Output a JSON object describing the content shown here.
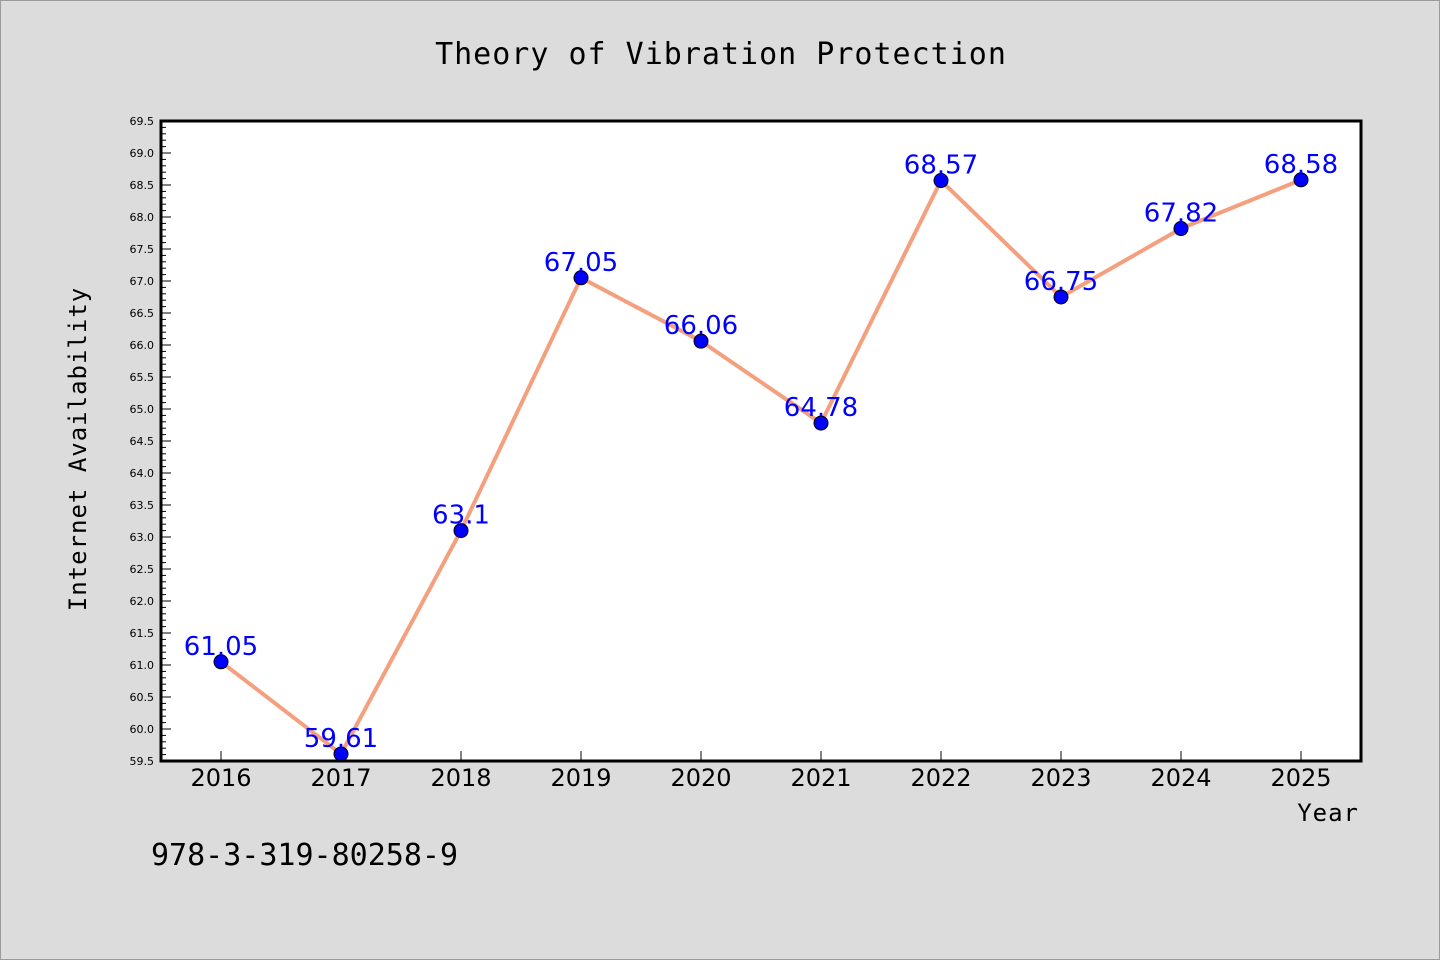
{
  "chart_data": {
    "type": "line",
    "title": "Theory of Vibration Protection",
    "xlabel": "Year",
    "ylabel": "Internet Availability",
    "x": [
      "2016",
      "2017",
      "2018",
      "2019",
      "2020",
      "2021",
      "2022",
      "2023",
      "2024",
      "2025"
    ],
    "series": [
      {
        "values": [
          61.05,
          59.61,
          63.1,
          67.05,
          66.06,
          64.78,
          68.57,
          66.75,
          67.82,
          68.58
        ],
        "labels": [
          "61.05",
          "59.61",
          "63.1",
          "67.05",
          "66.06",
          "64.78",
          "68.57",
          "66.75",
          "67.82",
          "68.58"
        ]
      }
    ],
    "ylim": [
      59.5,
      69.5
    ],
    "yticks": [
      "59.5",
      "60.0",
      "60.5",
      "61.0",
      "61.5",
      "62.0",
      "62.5",
      "63.0",
      "63.5",
      "64.0",
      "64.5",
      "65.0",
      "65.5",
      "66.0",
      "66.5",
      "67.0",
      "67.5",
      "68.0",
      "68.5",
      "69.0",
      "69.5"
    ],
    "grid": false,
    "line_color": "#f4a07f",
    "marker_color": "#0000ff",
    "label_color": "#0000ff",
    "plot_background": "#ffffff",
    "figure_background": "#dcdcdc"
  },
  "footer": {
    "isbn": "978-3-319-80258-9"
  }
}
